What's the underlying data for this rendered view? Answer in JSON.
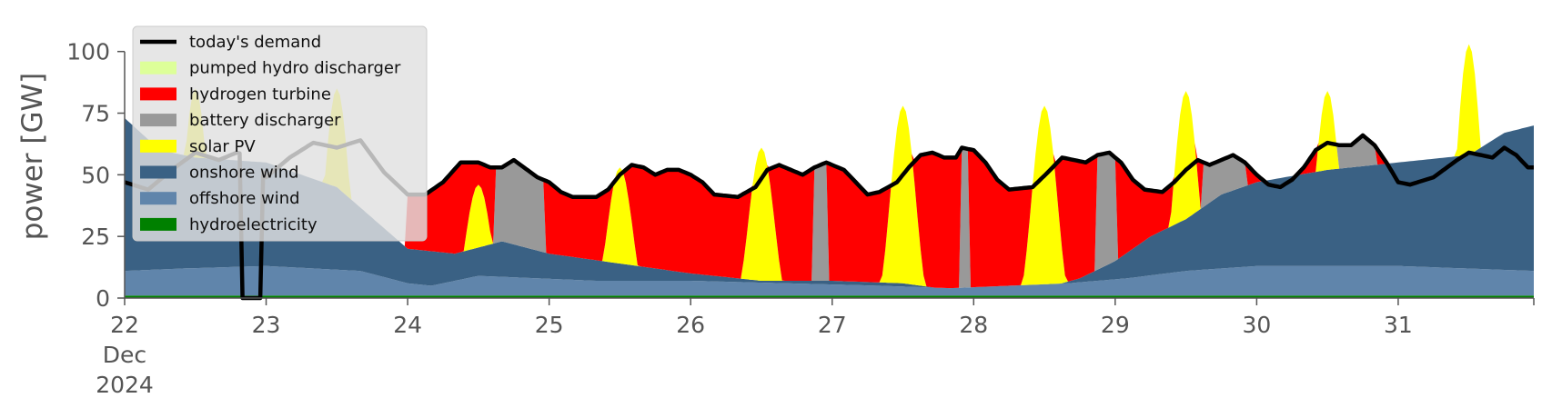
{
  "chart_data": {
    "type": "area",
    "ylabel": "power [GW]",
    "ylim": [
      0,
      115
    ],
    "yticks": [
      0,
      25,
      50,
      75,
      100
    ],
    "xlim": [
      0,
      239
    ],
    "xticks": [
      {
        "x": 0,
        "label": "22",
        "month": "Dec",
        "year": "2024"
      },
      {
        "x": 24,
        "label": "23"
      },
      {
        "x": 48,
        "label": "24"
      },
      {
        "x": 72,
        "label": "25"
      },
      {
        "x": 96,
        "label": "26"
      },
      {
        "x": 120,
        "label": "27"
      },
      {
        "x": 144,
        "label": "28"
      },
      {
        "x": 168,
        "label": "29"
      },
      {
        "x": 192,
        "label": "30"
      },
      {
        "x": 216,
        "label": "31"
      }
    ],
    "x_unit": "hours from 22 Dec 2024 00:00",
    "legend_position": "top-left",
    "series_order_bottom_to_top": [
      "hydroelectricity",
      "offshore wind",
      "onshore wind",
      "solar PV",
      "battery discharger",
      "hydrogen turbine",
      "pumped hydro discharger"
    ],
    "series": [
      {
        "name": "hydroelectricity",
        "color": "#008000",
        "points": [
          [
            0,
            1
          ],
          [
            239,
            1
          ]
        ]
      },
      {
        "name": "offshore wind",
        "color": "#6085ab",
        "points": [
          [
            0,
            10
          ],
          [
            10,
            11
          ],
          [
            24,
            12
          ],
          [
            40,
            10
          ],
          [
            48,
            5
          ],
          [
            52,
            4
          ],
          [
            60,
            8
          ],
          [
            80,
            6
          ],
          [
            96,
            6
          ],
          [
            112,
            5
          ],
          [
            128,
            4
          ],
          [
            140,
            3
          ],
          [
            150,
            4
          ],
          [
            160,
            5
          ],
          [
            170,
            7
          ],
          [
            180,
            10
          ],
          [
            192,
            12
          ],
          [
            216,
            12
          ],
          [
            239,
            10
          ]
        ]
      },
      {
        "name": "onshore wind",
        "color": "#3a6184",
        "points": [
          [
            0,
            73
          ],
          [
            6,
            60
          ],
          [
            12,
            57
          ],
          [
            24,
            55
          ],
          [
            36,
            45
          ],
          [
            48,
            20
          ],
          [
            56,
            18
          ],
          [
            64,
            23
          ],
          [
            72,
            18
          ],
          [
            84,
            14
          ],
          [
            96,
            10
          ],
          [
            108,
            7
          ],
          [
            120,
            7
          ],
          [
            132,
            6
          ],
          [
            138,
            4
          ],
          [
            144,
            3
          ],
          [
            150,
            3
          ],
          [
            156,
            4
          ],
          [
            162,
            8
          ],
          [
            168,
            15
          ],
          [
            174,
            25
          ],
          [
            180,
            32
          ],
          [
            186,
            42
          ],
          [
            192,
            47
          ],
          [
            204,
            52
          ],
          [
            216,
            55
          ],
          [
            228,
            58
          ],
          [
            234,
            67
          ],
          [
            239,
            70
          ]
        ]
      },
      {
        "name": "solar PV",
        "profile": "peaks",
        "color": "#ffff00",
        "peaks": [
          {
            "x": 12,
            "peak": 85
          },
          {
            "x": 36,
            "peak": 85
          },
          {
            "x": 60,
            "peak": 46
          },
          {
            "x": 84,
            "peak": 53
          },
          {
            "x": 108,
            "peak": 61
          },
          {
            "x": 132,
            "peak": 78
          },
          {
            "x": 156,
            "peak": 78
          },
          {
            "x": 180,
            "peak": 84
          },
          {
            "x": 204,
            "peak": 84
          },
          {
            "x": 228,
            "peak": 103
          }
        ]
      },
      {
        "name": "battery discharger",
        "color": "#999999",
        "windows": [
          {
            "from": 63,
            "to": 71
          },
          {
            "from": 117,
            "to": 119
          },
          {
            "from": 142,
            "to": 143
          },
          {
            "from": 165,
            "to": 168
          },
          {
            "from": 183,
            "to": 190
          },
          {
            "from": 206,
            "to": 212
          }
        ]
      },
      {
        "name": "hydrogen turbine",
        "color": "#ff0000",
        "fills_to": "today's demand"
      },
      {
        "name": "pumped hydro discharger",
        "color": "#ddff99"
      }
    ],
    "demand": {
      "name": "today's demand",
      "color": "#000000",
      "points": [
        [
          0,
          47
        ],
        [
          4,
          44
        ],
        [
          8,
          52
        ],
        [
          12,
          59
        ],
        [
          16,
          56
        ],
        [
          19,
          59
        ],
        [
          22,
          57
        ],
        [
          24,
          49
        ],
        [
          28,
          57
        ],
        [
          32,
          63
        ],
        [
          36,
          61
        ],
        [
          40,
          64
        ],
        [
          44,
          51
        ],
        [
          48,
          42
        ],
        [
          51,
          42
        ],
        [
          54,
          47
        ],
        [
          57,
          55
        ],
        [
          60,
          55
        ],
        [
          62,
          53
        ],
        [
          64,
          53
        ],
        [
          66,
          56
        ],
        [
          70,
          49
        ],
        [
          72,
          47
        ],
        [
          74,
          43
        ],
        [
          76,
          41
        ],
        [
          80,
          41
        ],
        [
          82,
          44
        ],
        [
          84,
          50
        ],
        [
          86,
          54
        ],
        [
          88,
          53
        ],
        [
          90,
          50
        ],
        [
          92,
          52
        ],
        [
          94,
          52
        ],
        [
          96,
          50
        ],
        [
          98,
          47
        ],
        [
          100,
          42
        ],
        [
          104,
          41
        ],
        [
          107,
          45
        ],
        [
          109,
          52
        ],
        [
          111,
          54
        ],
        [
          113,
          52
        ],
        [
          115,
          50
        ],
        [
          117,
          53
        ],
        [
          119,
          55
        ],
        [
          122,
          52
        ],
        [
          124,
          47
        ],
        [
          126,
          42
        ],
        [
          128,
          43
        ],
        [
          131,
          47
        ],
        [
          133,
          53
        ],
        [
          135,
          58
        ],
        [
          137,
          59
        ],
        [
          139,
          57
        ],
        [
          141,
          57
        ],
        [
          142,
          61
        ],
        [
          144,
          60
        ],
        [
          146,
          55
        ],
        [
          148,
          48
        ],
        [
          150,
          44
        ],
        [
          154,
          45
        ],
        [
          157,
          52
        ],
        [
          159,
          57
        ],
        [
          161,
          56
        ],
        [
          163,
          55
        ],
        [
          165,
          58
        ],
        [
          167,
          59
        ],
        [
          169,
          55
        ],
        [
          171,
          48
        ],
        [
          173,
          44
        ],
        [
          176,
          43
        ],
        [
          178,
          47
        ],
        [
          180,
          52
        ],
        [
          182,
          56
        ],
        [
          184,
          54
        ],
        [
          186,
          56
        ],
        [
          188,
          58
        ],
        [
          190,
          55
        ],
        [
          192,
          50
        ],
        [
          194,
          46
        ],
        [
          196,
          45
        ],
        [
          198,
          48
        ],
        [
          200,
          53
        ],
        [
          202,
          60
        ],
        [
          204,
          63
        ],
        [
          206,
          62
        ],
        [
          208,
          62
        ],
        [
          210,
          66
        ],
        [
          212,
          62
        ],
        [
          214,
          55
        ],
        [
          216,
          47
        ],
        [
          218,
          46
        ],
        [
          222,
          49
        ],
        [
          226,
          56
        ],
        [
          228,
          59
        ],
        [
          230,
          58
        ],
        [
          232,
          57
        ],
        [
          234,
          61
        ],
        [
          236,
          58
        ],
        [
          238,
          53
        ],
        [
          239,
          53
        ]
      ],
      "outage": [
        {
          "from": 19.5,
          "to": 23.5
        }
      ]
    },
    "legend": [
      "today's demand",
      "pumped hydro discharger",
      "hydrogen turbine",
      "battery discharger",
      "solar PV",
      "onshore wind",
      "offshore wind",
      "hydroelectricity"
    ]
  }
}
